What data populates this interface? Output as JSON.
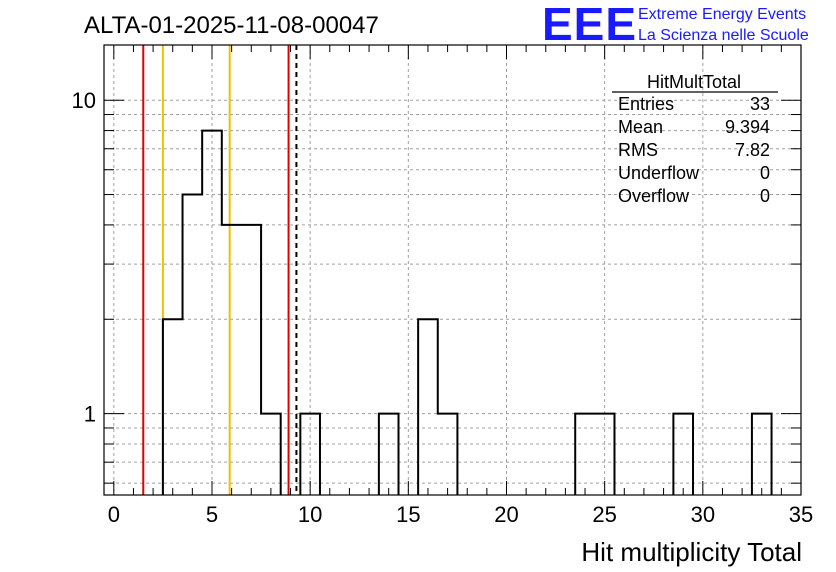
{
  "header": {
    "title": "ALTA-01-2025-11-08-00047",
    "logo_text": "EEE",
    "logo_line1": "Extreme Energy Events",
    "logo_line2": "La Scienza nelle Scuole"
  },
  "stats_box": {
    "name": "HitMultTotal",
    "rows": [
      {
        "label": "Entries",
        "value": "33"
      },
      {
        "label": "Mean",
        "value": "9.394"
      },
      {
        "label": "RMS",
        "value": "7.82"
      },
      {
        "label": "Underflow",
        "value": "0"
      },
      {
        "label": "Overflow",
        "value": "0"
      }
    ]
  },
  "chart_data": {
    "type": "histogram",
    "title": "ALTA-01-2025-11-08-00047",
    "xlabel": "Hit multiplicity Total",
    "ylabel": "",
    "xlim": [
      -0.5,
      35
    ],
    "ylim": [
      0.55,
      15
    ],
    "yscale": "log",
    "grid": true,
    "x_ticks": [
      0,
      5,
      10,
      15,
      20,
      25,
      30,
      35
    ],
    "y_ticks": [
      1,
      10
    ],
    "bin_width": 1,
    "bins": [
      {
        "x0": 2.5,
        "x1": 3.5,
        "count": 2
      },
      {
        "x0": 3.5,
        "x1": 4.5,
        "count": 5
      },
      {
        "x0": 4.5,
        "x1": 5.5,
        "count": 8
      },
      {
        "x0": 5.5,
        "x1": 6.5,
        "count": 4
      },
      {
        "x0": 6.5,
        "x1": 7.5,
        "count": 4
      },
      {
        "x0": 7.5,
        "x1": 8.5,
        "count": 1
      },
      {
        "x0": 9.5,
        "x1": 10.5,
        "count": 1
      },
      {
        "x0": 13.5,
        "x1": 14.5,
        "count": 1
      },
      {
        "x0": 15.5,
        "x1": 16.5,
        "count": 2
      },
      {
        "x0": 16.5,
        "x1": 17.5,
        "count": 1
      },
      {
        "x0": 23.5,
        "x1": 24.5,
        "count": 1
      },
      {
        "x0": 24.5,
        "x1": 25.5,
        "count": 1
      },
      {
        "x0": 28.5,
        "x1": 29.5,
        "count": 1
      },
      {
        "x0": 32.5,
        "x1": 33.5,
        "count": 1
      }
    ],
    "vertical_lines": [
      {
        "x": 1.5,
        "color": "#e00000",
        "style": "solid"
      },
      {
        "x": 2.5,
        "color": "#f0c000",
        "style": "solid"
      },
      {
        "x": 5.9,
        "color": "#f0c000",
        "style": "solid"
      },
      {
        "x": 8.9,
        "color": "#e00000",
        "style": "solid"
      },
      {
        "x": 9.3,
        "color": "#000000",
        "style": "dashed"
      }
    ],
    "colors": {
      "histogram": "#000000",
      "grid": "#a0a0a0"
    }
  }
}
